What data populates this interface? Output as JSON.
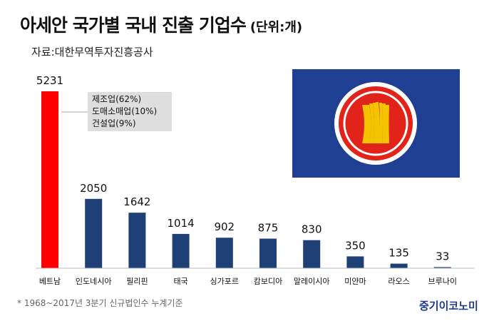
{
  "header": {
    "title": "아세안 국가별 국내 진출 기업수",
    "unit": "(단위:개)",
    "source": "자료:대한무역투자진흥공사"
  },
  "annotation": {
    "lines": [
      "제조업(62%)",
      "도매소매업(10%)",
      "건설업(9%)"
    ]
  },
  "footnote": "* 1968~2017년 3분기 신규법인수 누계기준",
  "brand": "중기이코노미",
  "flag": {
    "name": "ASEAN flag",
    "field_color": "#1f3f93",
    "circle_color": "#e2231a",
    "ring_color": "#ffffff",
    "emblem_color": "#f5c400"
  },
  "chart_data": {
    "type": "bar",
    "categories": [
      "베트남",
      "인도네시아",
      "필리핀",
      "태국",
      "싱가포르",
      "캄보디아",
      "말레이시아",
      "미얀마",
      "라오스",
      "브루나이"
    ],
    "values": [
      5231,
      2050,
      1642,
      1014,
      902,
      875,
      830,
      350,
      135,
      33
    ],
    "colors": [
      "#ff0000",
      "#1f3f77",
      "#1f3f77",
      "#1f3f77",
      "#1f3f77",
      "#1f3f77",
      "#1f3f77",
      "#1f3f77",
      "#1f3f77",
      "#1f3f77"
    ],
    "title": "아세안 국가별 국내 진출 기업수",
    "xlabel": "",
    "ylabel": "",
    "ylim": [
      0,
      5231
    ],
    "grid": false,
    "legend": "none"
  }
}
